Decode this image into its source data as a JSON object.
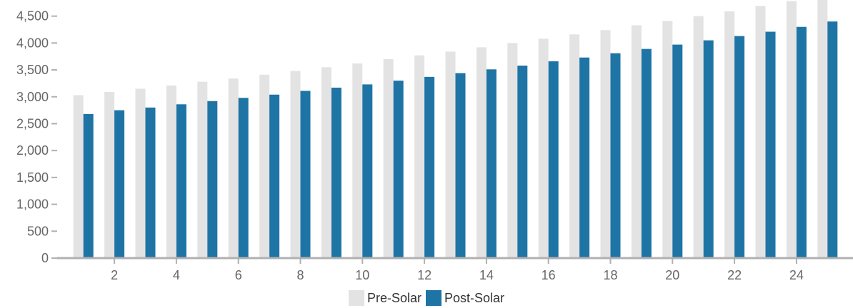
{
  "chart_data": {
    "type": "bar",
    "title": "",
    "xlabel": "",
    "ylabel": "",
    "categories": [
      1,
      2,
      3,
      4,
      5,
      6,
      7,
      8,
      9,
      10,
      11,
      12,
      13,
      14,
      15,
      16,
      17,
      18,
      19,
      20,
      21,
      22,
      23,
      24,
      25
    ],
    "x_tick_labels": [
      "2",
      "4",
      "6",
      "8",
      "10",
      "12",
      "14",
      "16",
      "18",
      "20",
      "22",
      "24"
    ],
    "y_tick_labels": [
      "0",
      "500",
      "1,000",
      "1,500",
      "2,000",
      "2,500",
      "3,000",
      "3,500",
      "4,000",
      "4,500"
    ],
    "y_ticks": [
      0,
      500,
      1000,
      1500,
      2000,
      2500,
      3000,
      3500,
      4000,
      4500
    ],
    "ylim": [
      0,
      4800
    ],
    "grid": false,
    "legend_position": "bottom-center",
    "series": [
      {
        "name": "Pre-Solar",
        "color": "#e3e3e3",
        "values": [
          3030,
          3090,
          3150,
          3210,
          3280,
          3340,
          3410,
          3480,
          3550,
          3620,
          3700,
          3770,
          3840,
          3920,
          4000,
          4080,
          4160,
          4240,
          4330,
          4410,
          4500,
          4590,
          4690,
          4780,
          4880
        ]
      },
      {
        "name": "Post-Solar",
        "color": "#1f74a6",
        "values": [
          2680,
          2750,
          2800,
          2860,
          2920,
          2980,
          3040,
          3110,
          3170,
          3230,
          3300,
          3370,
          3440,
          3510,
          3580,
          3660,
          3730,
          3810,
          3890,
          3970,
          4050,
          4130,
          4210,
          4300,
          4400
        ]
      }
    ]
  },
  "legend": {
    "items": [
      {
        "label": "Pre-Solar",
        "color": "#e3e3e3"
      },
      {
        "label": "Post-Solar",
        "color": "#1f74a6"
      }
    ]
  }
}
